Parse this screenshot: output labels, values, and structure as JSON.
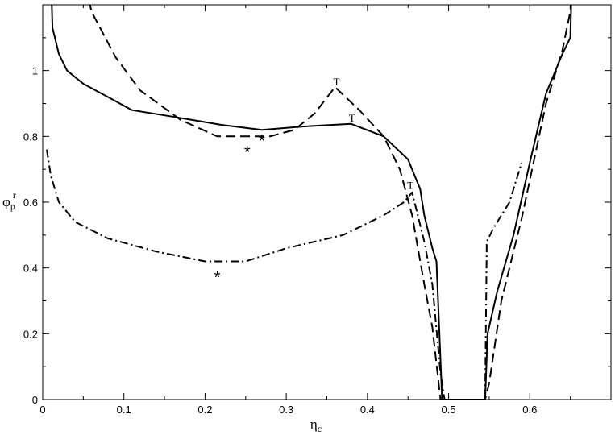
{
  "chart_data": {
    "type": "line",
    "xlabel_main": "η",
    "xlabel_sub": "c",
    "ylabel_main": "φ",
    "ylabel_sub": "p",
    "ylabel_sup": "r",
    "xlim": [
      0,
      0.7
    ],
    "ylim": [
      0,
      1.2
    ],
    "xticks": [
      0,
      0.1,
      0.2,
      0.3,
      0.4,
      0.5,
      0.6
    ],
    "xtick_labels": [
      "0",
      "0.1",
      "0.2",
      "0.3",
      "0.4",
      "0.5",
      "0.6"
    ],
    "yticks": [
      0,
      0.2,
      0.4,
      0.6,
      0.8,
      1.0
    ],
    "ytick_labels": [
      "0",
      "0.2",
      "0.4",
      "0.6",
      "0.8",
      "1"
    ],
    "grid": false,
    "series": [
      {
        "style": "solid",
        "points": [
          [
            0.01,
            1.3
          ],
          [
            0.012,
            1.13
          ],
          [
            0.02,
            1.05
          ],
          [
            0.03,
            1.0
          ],
          [
            0.05,
            0.96
          ],
          [
            0.08,
            0.92
          ],
          [
            0.11,
            0.88
          ],
          [
            0.16,
            0.86
          ],
          [
            0.22,
            0.835
          ],
          [
            0.27,
            0.82
          ],
          [
            0.32,
            0.83
          ],
          [
            0.38,
            0.838
          ],
          [
            0.42,
            0.8
          ],
          [
            0.45,
            0.73
          ],
          [
            0.465,
            0.64
          ],
          [
            0.47,
            0.56
          ],
          [
            0.48,
            0.46
          ],
          [
            0.485,
            0.42
          ],
          [
            0.492,
            0.0
          ],
          [
            0.545,
            0.0
          ],
          [
            0.548,
            0.2
          ],
          [
            0.56,
            0.33
          ],
          [
            0.58,
            0.5
          ],
          [
            0.6,
            0.72
          ],
          [
            0.62,
            0.93
          ],
          [
            0.64,
            1.05
          ],
          [
            0.65,
            1.1
          ],
          [
            0.652,
            1.3
          ]
        ]
      },
      {
        "style": "dashed",
        "points": [
          [
            0.05,
            1.3
          ],
          [
            0.06,
            1.18
          ],
          [
            0.09,
            1.04
          ],
          [
            0.12,
            0.94
          ],
          [
            0.17,
            0.85
          ],
          [
            0.215,
            0.8
          ],
          [
            0.28,
            0.8
          ],
          [
            0.31,
            0.82
          ],
          [
            0.335,
            0.87
          ],
          [
            0.36,
            0.95
          ],
          [
            0.39,
            0.88
          ],
          [
            0.42,
            0.8
          ],
          [
            0.44,
            0.7
          ],
          [
            0.455,
            0.56
          ],
          [
            0.47,
            0.35
          ],
          [
            0.48,
            0.22
          ],
          [
            0.49,
            0.0
          ],
          [
            0.545,
            0.0
          ],
          [
            0.55,
            0.05
          ],
          [
            0.565,
            0.3
          ],
          [
            0.59,
            0.55
          ],
          [
            0.62,
            0.9
          ],
          [
            0.64,
            1.06
          ],
          [
            0.65,
            1.18
          ],
          [
            0.652,
            1.3
          ]
        ]
      },
      {
        "style": "dash-dot",
        "points": [
          [
            0.005,
            0.76
          ],
          [
            0.01,
            0.68
          ],
          [
            0.02,
            0.6
          ],
          [
            0.04,
            0.54
          ],
          [
            0.08,
            0.49
          ],
          [
            0.14,
            0.45
          ],
          [
            0.2,
            0.42
          ],
          [
            0.25,
            0.42
          ],
          [
            0.3,
            0.46
          ],
          [
            0.37,
            0.5
          ],
          [
            0.42,
            0.56
          ],
          [
            0.445,
            0.6
          ],
          [
            0.455,
            0.63
          ],
          [
            0.47,
            0.48
          ],
          [
            0.48,
            0.35
          ],
          [
            0.49,
            0.08
          ],
          [
            0.495,
            0.0
          ],
          [
            0.545,
            0.0
          ],
          [
            0.547,
            0.48
          ],
          [
            0.555,
            0.52
          ],
          [
            0.575,
            0.6
          ],
          [
            0.59,
            0.72
          ]
        ]
      }
    ],
    "annotations": [
      {
        "text": "T",
        "x": 0.362,
        "y": 0.955
      },
      {
        "text": "T",
        "x": 0.381,
        "y": 0.845
      },
      {
        "text": "T",
        "x": 0.453,
        "y": 0.64
      },
      {
        "text": "*",
        "x": 0.27,
        "y": 0.8
      },
      {
        "text": "*",
        "x": 0.252,
        "y": 0.765
      },
      {
        "text": "*",
        "x": 0.215,
        "y": 0.385
      }
    ]
  }
}
